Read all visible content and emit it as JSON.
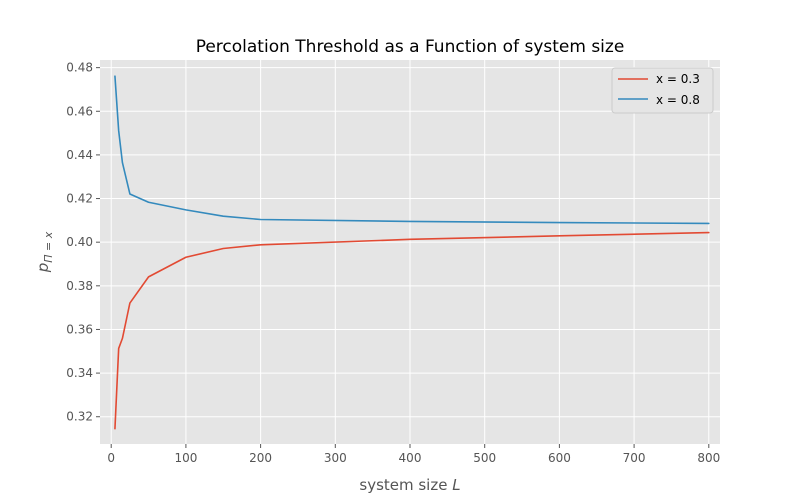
{
  "chart_data": {
    "type": "line",
    "title": "Percolation Threshold as a Function of system size",
    "xlabel": "system size",
    "xlabel_var": "L",
    "ylabel": "p",
    "ylabel_sub": "Π = x",
    "xlim": [
      -15,
      815
    ],
    "ylim": [
      0.3075,
      0.4835
    ],
    "xticks": [
      0,
      100,
      200,
      300,
      400,
      500,
      600,
      700,
      800
    ],
    "xtick_labels": [
      "0",
      "100",
      "200",
      "300",
      "400",
      "500",
      "600",
      "700",
      "800"
    ],
    "yticks": [
      0.32,
      0.34,
      0.36,
      0.38,
      0.4,
      0.42,
      0.44,
      0.46,
      0.48
    ],
    "ytick_labels": [
      "0.32",
      "0.34",
      "0.36",
      "0.38",
      "0.40",
      "0.42",
      "0.44",
      "0.46",
      "0.48"
    ],
    "grid": true,
    "style": "ggplot",
    "legend_position": "top-right",
    "background_color": "#e5e5e5",
    "x": [
      5,
      10,
      15,
      25,
      50,
      100,
      150,
      200,
      400,
      600,
      800
    ],
    "series": [
      {
        "name": "x = 0.3",
        "color": "#e24a33",
        "values": [
          0.3145,
          0.3513,
          0.3559,
          0.3721,
          0.3841,
          0.3931,
          0.3971,
          0.3988,
          0.4013,
          0.4029,
          0.4044
        ]
      },
      {
        "name": "x = 0.8",
        "color": "#348abd",
        "values": [
          0.4761,
          0.4511,
          0.4365,
          0.4221,
          0.4183,
          0.4148,
          0.4119,
          0.4104,
          0.4095,
          0.409,
          0.4086
        ]
      }
    ]
  }
}
